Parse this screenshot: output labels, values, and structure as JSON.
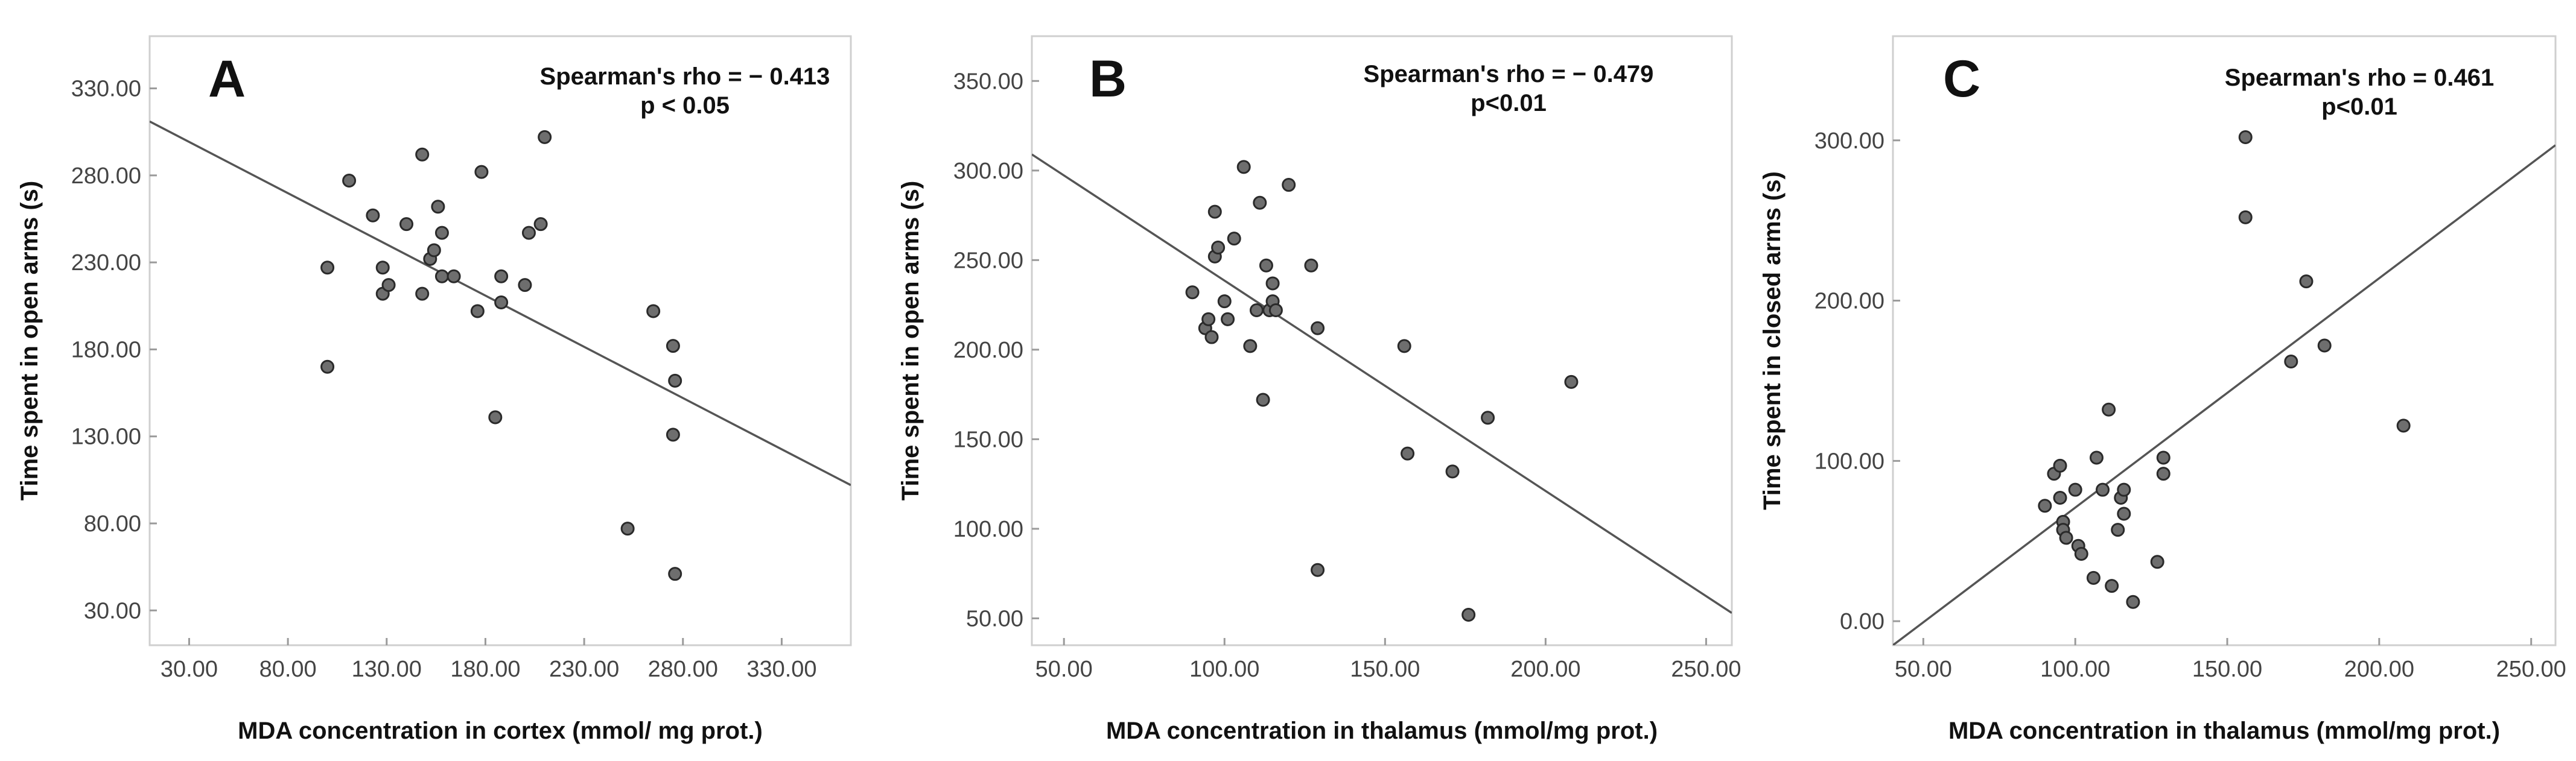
{
  "chart_data": [
    {
      "type": "scatter",
      "panel_label": "A",
      "annotation": {
        "line1": "Spearman's rho = − 0.413",
        "line2": "p < 0.05"
      },
      "xlabel": "MDA concentration in cortex (mmol/ mg prot.)",
      "ylabel": "Time spent in open arms (s)",
      "xlim": [
        10,
        365
      ],
      "ylim": [
        10,
        360
      ],
      "x_ticks": [
        30,
        80,
        130,
        180,
        230,
        280,
        330
      ],
      "x_tick_labels": [
        "30.00",
        "80.00",
        "130.00",
        "180.00",
        "230.00",
        "280.00",
        "330.00"
      ],
      "y_ticks": [
        30,
        80,
        130,
        180,
        230,
        280,
        330
      ],
      "y_tick_labels": [
        "30.00",
        "80.00",
        "130.00",
        "180.00",
        "230.00",
        "280.00",
        "330.00"
      ],
      "points": [
        [
          100,
          227
        ],
        [
          100,
          170
        ],
        [
          111,
          277
        ],
        [
          123,
          257
        ],
        [
          128,
          212
        ],
        [
          128,
          227
        ],
        [
          131,
          217
        ],
        [
          140,
          252
        ],
        [
          148,
          292
        ],
        [
          148,
          212
        ],
        [
          152,
          232
        ],
        [
          154,
          237
        ],
        [
          156,
          262
        ],
        [
          158,
          222
        ],
        [
          158,
          247
        ],
        [
          164,
          222
        ],
        [
          176,
          202
        ],
        [
          178,
          282
        ],
        [
          185,
          141
        ],
        [
          188,
          222
        ],
        [
          188,
          207
        ],
        [
          200,
          217
        ],
        [
          202,
          247
        ],
        [
          208,
          252
        ],
        [
          210,
          302
        ],
        [
          265,
          202
        ],
        [
          275,
          182
        ],
        [
          275,
          131
        ],
        [
          276,
          162
        ],
        [
          276,
          51
        ],
        [
          252,
          77
        ]
      ],
      "fit_line": {
        "x": [
          10,
          365
        ],
        "y": [
          311,
          102
        ]
      }
    },
    {
      "type": "scatter",
      "panel_label": "B",
      "annotation": {
        "line1": "Spearman's rho = − 0.479",
        "line2": "p<0.01"
      },
      "xlabel": "MDA concentration in thalamus (mmol/mg prot.)",
      "ylabel": "Time spent in open arms (s)",
      "xlim": [
        40,
        258
      ],
      "ylim": [
        35,
        375
      ],
      "x_ticks": [
        50,
        100,
        150,
        200,
        250
      ],
      "x_tick_labels": [
        "50.00",
        "100.00",
        "150.00",
        "200.00",
        "250.00"
      ],
      "y_ticks": [
        50,
        100,
        150,
        200,
        250,
        300,
        350
      ],
      "y_tick_labels": [
        "50.00",
        "100.00",
        "150.00",
        "200.00",
        "250.00",
        "300.00",
        "350.00"
      ],
      "points": [
        [
          90,
          232
        ],
        [
          94,
          212
        ],
        [
          95,
          217
        ],
        [
          96,
          207
        ],
        [
          97,
          277
        ],
        [
          97,
          252
        ],
        [
          98,
          257
        ],
        [
          100,
          227
        ],
        [
          101,
          217
        ],
        [
          103,
          262
        ],
        [
          106,
          302
        ],
        [
          108,
          202
        ],
        [
          110,
          222
        ],
        [
          111,
          282
        ],
        [
          112,
          172
        ],
        [
          113,
          247
        ],
        [
          114,
          222
        ],
        [
          115,
          237
        ],
        [
          115,
          227
        ],
        [
          116,
          222
        ],
        [
          120,
          292
        ],
        [
          127,
          247
        ],
        [
          129,
          212
        ],
        [
          129,
          77
        ],
        [
          156,
          202
        ],
        [
          157,
          142
        ],
        [
          171,
          132
        ],
        [
          176,
          52
        ],
        [
          182,
          162
        ],
        [
          208,
          182
        ]
      ],
      "fit_line": {
        "x": [
          40,
          258
        ],
        "y": [
          309,
          53
        ]
      }
    },
    {
      "type": "scatter",
      "panel_label": "C",
      "annotation": {
        "line1": "Spearman's rho = 0.461",
        "line2": "p<0.01"
      },
      "xlabel": "MDA concentration in thalamus (mmol/mg prot.)",
      "ylabel": "Time spent in closed arms (s)",
      "xlim": [
        40,
        258
      ],
      "ylim": [
        -15,
        365
      ],
      "x_ticks": [
        50,
        100,
        150,
        200,
        250
      ],
      "x_tick_labels": [
        "50.00",
        "100.00",
        "150.00",
        "200.00",
        "250.00"
      ],
      "y_ticks": [
        0,
        100,
        200,
        300
      ],
      "y_tick_labels": [
        "0.00",
        "100.00",
        "200.00",
        "300.00"
      ],
      "points": [
        [
          90,
          72
        ],
        [
          93,
          92
        ],
        [
          95,
          97
        ],
        [
          95,
          77
        ],
        [
          96,
          62
        ],
        [
          96,
          57
        ],
        [
          97,
          52
        ],
        [
          100,
          82
        ],
        [
          101,
          47
        ],
        [
          102,
          42
        ],
        [
          106,
          27
        ],
        [
          107,
          102
        ],
        [
          109,
          82
        ],
        [
          111,
          132
        ],
        [
          112,
          22
        ],
        [
          114,
          57
        ],
        [
          115,
          77
        ],
        [
          116,
          67
        ],
        [
          116,
          82
        ],
        [
          119,
          12
        ],
        [
          127,
          37
        ],
        [
          129,
          102
        ],
        [
          129,
          92
        ],
        [
          156,
          302
        ],
        [
          156,
          252
        ],
        [
          171,
          162
        ],
        [
          176,
          212
        ],
        [
          182,
          172
        ],
        [
          208,
          122
        ]
      ],
      "fit_line": {
        "x": [
          40,
          258
        ],
        "y": [
          -15,
          297
        ]
      }
    }
  ]
}
